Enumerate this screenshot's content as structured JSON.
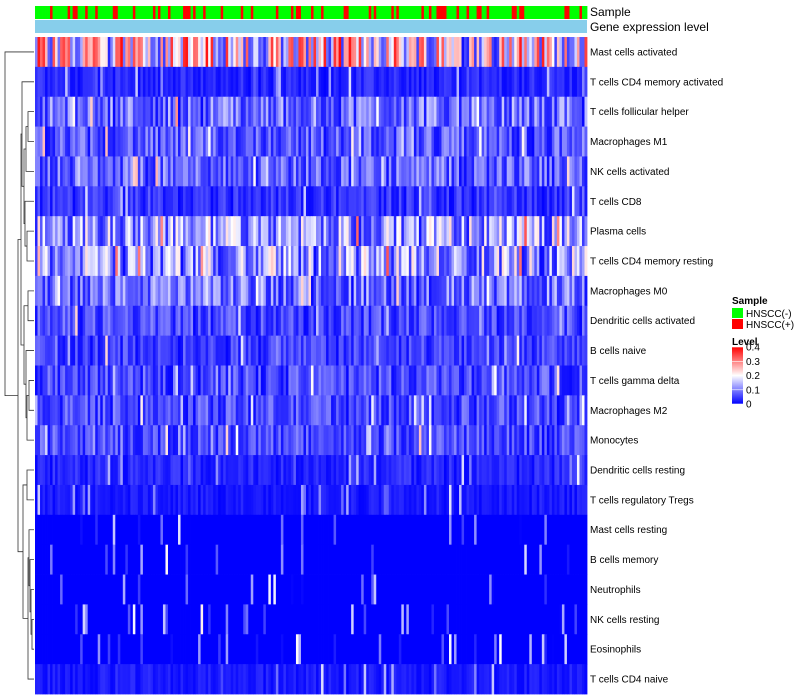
{
  "chart_data": {
    "type": "heatmap",
    "annotation_tracks": [
      "Sample",
      "Gene expression level"
    ],
    "sample_groups": [
      "HNSCC(-)",
      "HNSCC(+)"
    ],
    "rows": [
      {
        "label": "Mast cells activated",
        "mean": 0.22
      },
      {
        "label": "T cells CD4 memory activated",
        "mean": 0.03
      },
      {
        "label": "T cells follicular helper",
        "mean": 0.09
      },
      {
        "label": "Macrophages M1",
        "mean": 0.07
      },
      {
        "label": "NK cells activated",
        "mean": 0.08
      },
      {
        "label": "T cells CD8",
        "mean": 0.04
      },
      {
        "label": "Plasma cells",
        "mean": 0.13
      },
      {
        "label": "T cells CD4 memory resting",
        "mean": 0.13
      },
      {
        "label": "Macrophages M0",
        "mean": 0.09
      },
      {
        "label": "Dendritic cells activated",
        "mean": 0.06
      },
      {
        "label": "B cells naive",
        "mean": 0.05
      },
      {
        "label": "T cells gamma delta",
        "mean": 0.06
      },
      {
        "label": "Macrophages M2",
        "mean": 0.06
      },
      {
        "label": "Monocytes",
        "mean": 0.06
      },
      {
        "label": "Dendritic cells resting",
        "mean": 0.03
      },
      {
        "label": "T cells regulatory  Tregs",
        "mean": 0.02
      },
      {
        "label": "Mast cells resting",
        "mean": 0.004
      },
      {
        "label": "B cells memory",
        "mean": 0.006
      },
      {
        "label": "Neutrophils",
        "mean": 0.008
      },
      {
        "label": "NK cells resting",
        "mean": 0.006
      },
      {
        "label": "Eosinophils",
        "mean": 0.003
      },
      {
        "label": "T cells CD4 naive",
        "mean": 0.02
      }
    ],
    "n_samples": 220,
    "value_range": [
      0,
      0.4
    ],
    "colors": {
      "low": "#0000ff",
      "mid": "#ffffff",
      "high": "#ff0000",
      "mid_value": 0.2
    },
    "sample_colors": {
      "HNSCC(-)": "#00ff00",
      "HNSCC(+)": "#ff0000"
    },
    "expression_track_color": "#87ceeb",
    "row_dendrogram": true
  },
  "legend": {
    "sample": {
      "title": "Sample",
      "items": [
        "HNSCC(-)",
        "HNSCC(+)"
      ]
    },
    "level": {
      "title": "Level",
      "ticks": [
        "0.4",
        "0.3",
        "0.2",
        "0.1",
        "0"
      ]
    }
  }
}
